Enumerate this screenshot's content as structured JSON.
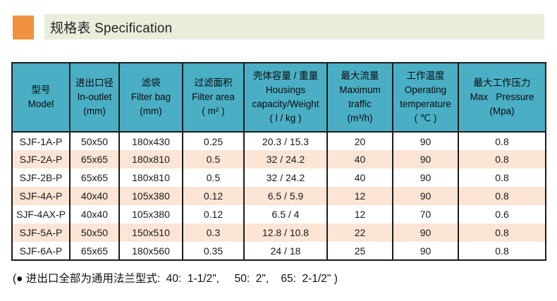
{
  "header": {
    "title": "规格表 Specification",
    "accent_color": "#f0923f",
    "bar_color": "#e9edda"
  },
  "table": {
    "header_bg_color": "#4aafc5",
    "alt_row_color": "#fce5d4",
    "columns": [
      {
        "lines": [
          "型号",
          "Model"
        ]
      },
      {
        "lines": [
          "进出口径",
          "In-outlet",
          "(mm)"
        ]
      },
      {
        "lines": [
          "滤袋",
          "Filter bag",
          "(mm)"
        ]
      },
      {
        "lines": [
          "过滤面积",
          "Filter area",
          "( m² )"
        ]
      },
      {
        "lines": [
          "壳体容量 / 重量",
          "Housings",
          "capacity/Weight",
          "( l / kg )"
        ]
      },
      {
        "lines": [
          "最大流量",
          "Maximum",
          "traffic",
          "(m³/h)"
        ]
      },
      {
        "lines": [
          "工作温度",
          "Operating",
          "temperature",
          "( ℃ )"
        ]
      },
      {
        "lines": [
          "最大工作压力",
          "Max   Pressure",
          "(Mpa)"
        ]
      }
    ],
    "rows": [
      [
        "SJF-1A-P",
        "50x50",
        "180x430",
        "0.25",
        "20.3 / 15.3",
        "20",
        "90",
        "0.8"
      ],
      [
        "SJF-2A-P",
        "65x65",
        "180x810",
        "0.5",
        "32 / 24.2",
        "40",
        "90",
        "0.8"
      ],
      [
        "SJF-2B-P",
        "65x65",
        "180x810",
        "0.5",
        "32 / 24.2",
        "40",
        "90",
        "0.8"
      ],
      [
        "SJF-4A-P",
        "40x40",
        "105x380",
        "0.12",
        "6.5 / 5.9",
        "12",
        "90",
        "0.8"
      ],
      [
        "SJF-4AX-P",
        "40x40",
        "105x380",
        "0.12",
        "6.5 / 4",
        "12",
        "70",
        "0.6"
      ],
      [
        "SJF-5A-P",
        "50x50",
        "150x510",
        "0.3",
        "12.8 / 10.8",
        "22",
        "90",
        "0.8"
      ],
      [
        "SJF-6A-P",
        "65x65",
        "180x560",
        "0.35",
        "24 / 18",
        "25",
        "90",
        "0.8"
      ]
    ]
  },
  "footnote": "(● 进出口全部为通用法兰型式:  40:  1-1/2\",     50:  2\",    65:  2-1/2\" )"
}
